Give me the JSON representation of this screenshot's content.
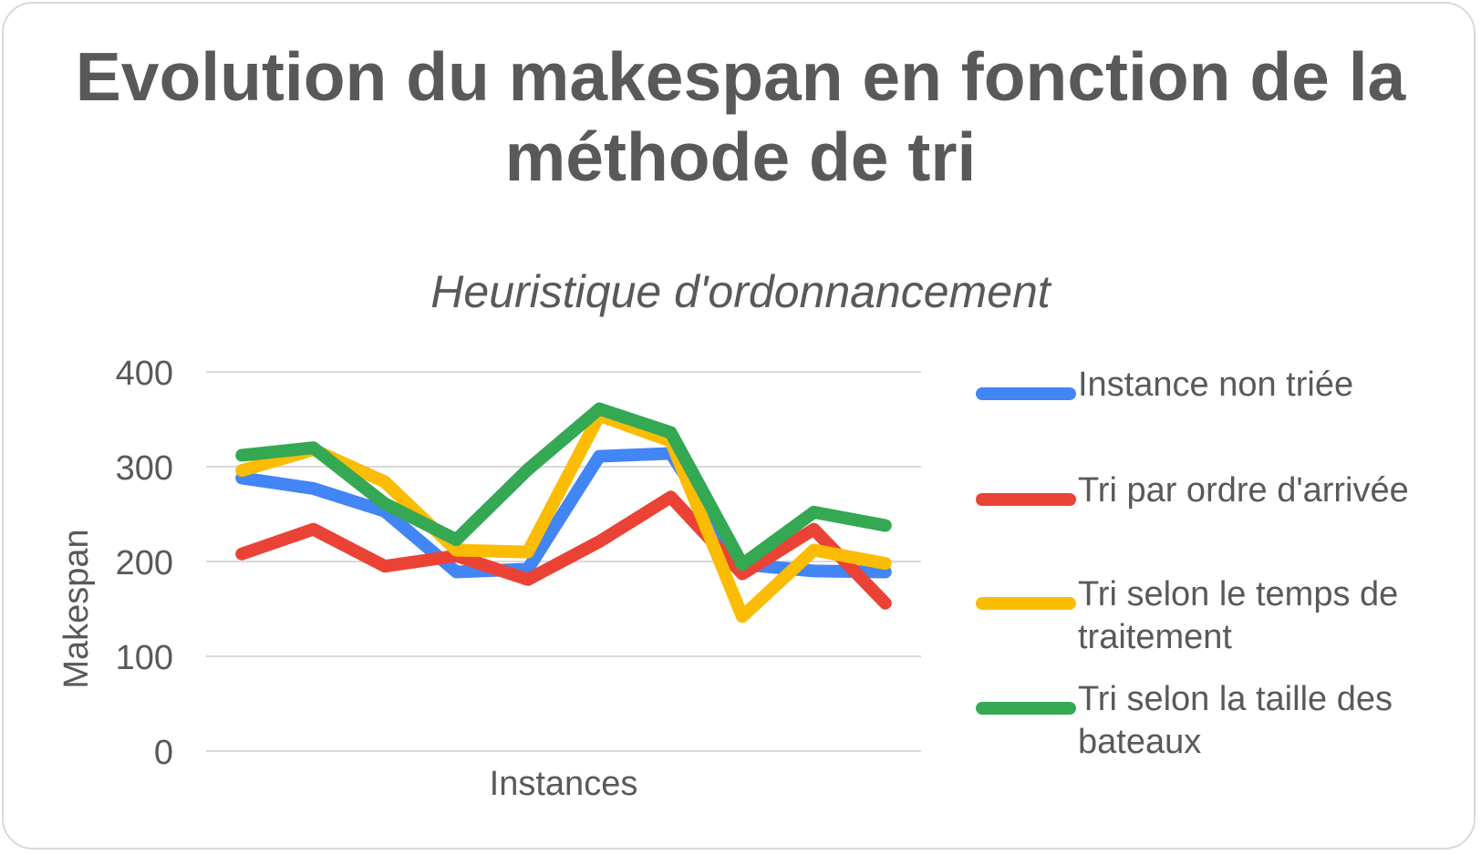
{
  "chart_data": {
    "type": "line",
    "title": "Evolution du makespan en fonction de la méthode de tri",
    "subtitle": "Heuristique d'ordonnancement",
    "xlabel": "Instances",
    "ylabel": "Makespan",
    "ylim": [
      0,
      400
    ],
    "yticks": [
      "0",
      "100",
      "200",
      "300",
      "400"
    ],
    "grid": true,
    "legend_position": "right",
    "x": [
      1,
      2,
      3,
      4,
      5,
      6,
      7,
      8,
      9,
      10
    ],
    "series": [
      {
        "name": "Instance non triée",
        "color": "#4285F4",
        "values": [
          288,
          277,
          253,
          189,
          192,
          311,
          314,
          197,
          190,
          189
        ]
      },
      {
        "name": "Tri par ordre d'arrivée",
        "color": "#EA4335",
        "values": [
          208,
          234,
          195,
          206,
          181,
          221,
          268,
          187,
          234,
          156
        ]
      },
      {
        "name": "Tri selon le temps de traitement",
        "color": "#FBBC04",
        "values": [
          296,
          318,
          284,
          212,
          210,
          354,
          327,
          142,
          212,
          198
        ]
      },
      {
        "name": "Tri selon la taille des bateaux",
        "color": "#34A853",
        "values": [
          312,
          320,
          261,
          223,
          297,
          361,
          336,
          197,
          252,
          238
        ]
      }
    ]
  }
}
